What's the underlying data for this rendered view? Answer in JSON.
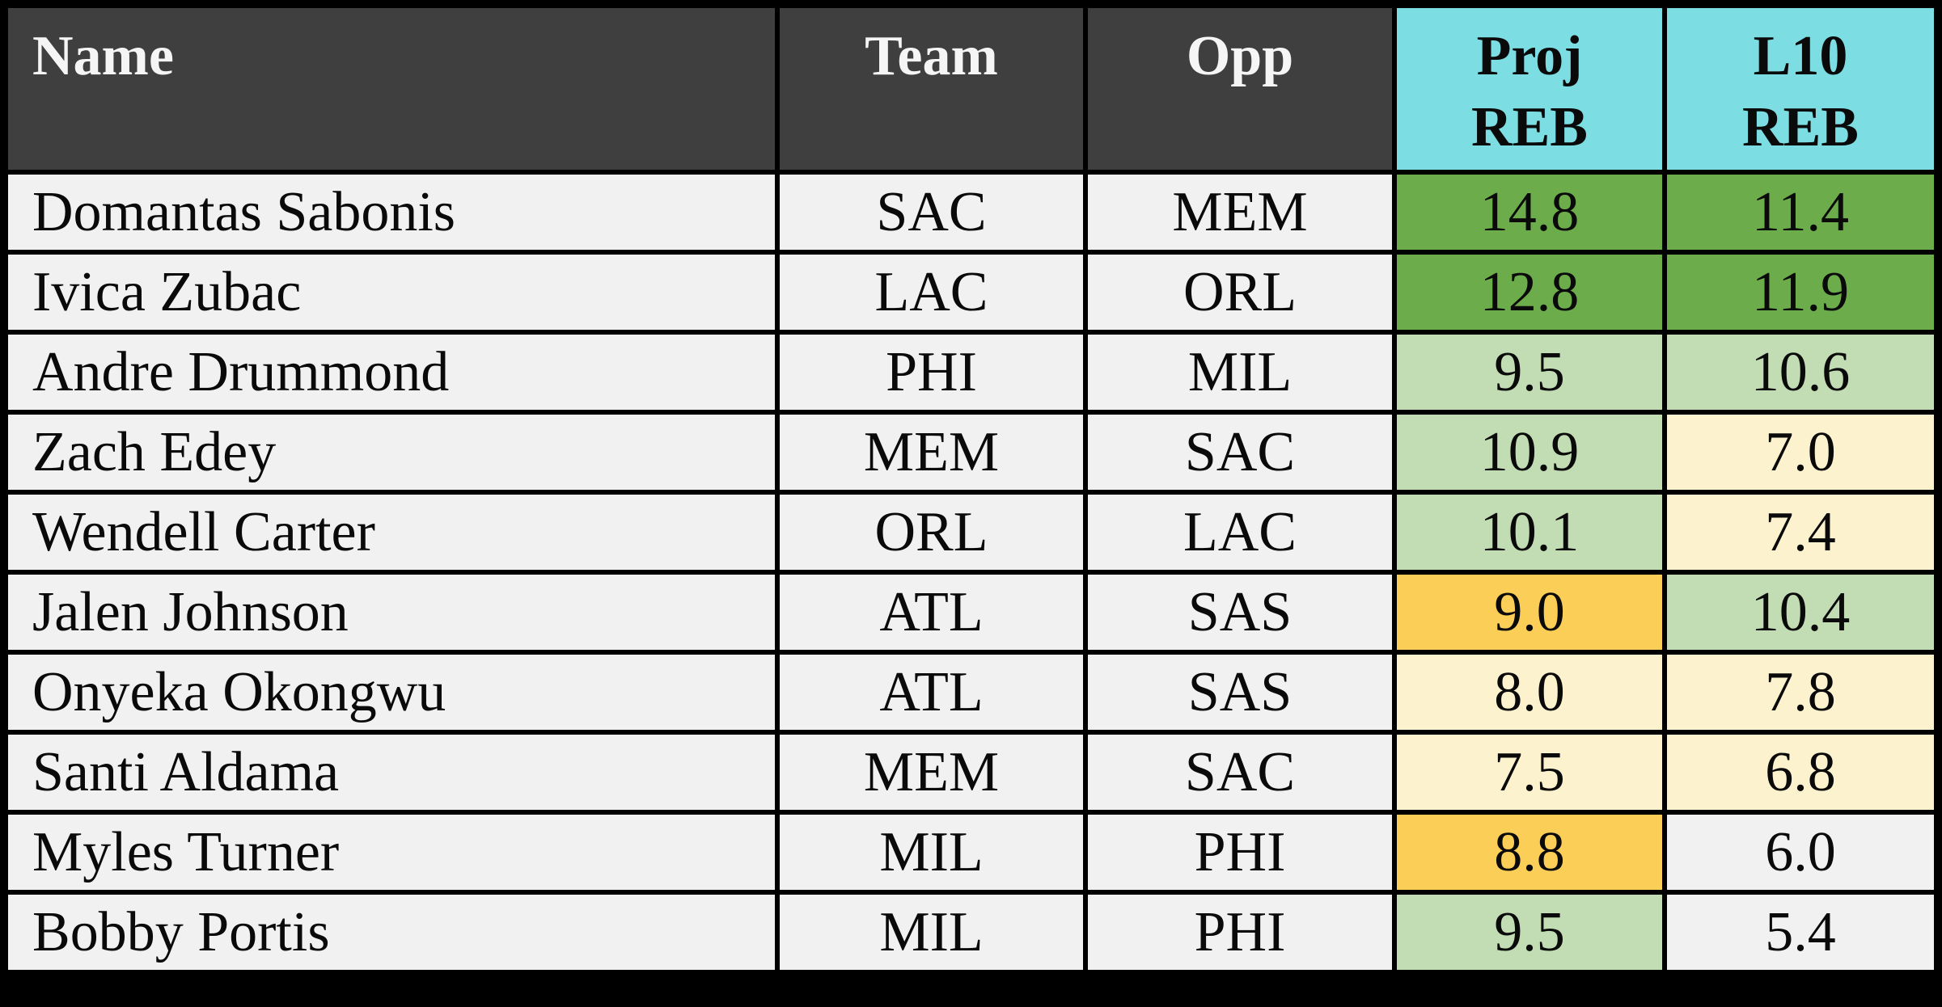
{
  "title": "NBA rebound projections table",
  "colors": {
    "frame": "#000000",
    "header_bg": "#3F3F3F",
    "header_text": "#F5F5F5",
    "accent_cyan": "#7CDDE2",
    "row_bg": "#F1F1F1",
    "cell_text": "#0A0A0A",
    "scale": {
      "green": "#6CAC4B",
      "green_light": "#C2DDB3",
      "yellow_light": "#FCF2CE",
      "gold": "#FBCF57",
      "none": "#F1F1F1"
    }
  },
  "table": {
    "header": {
      "name": "Name",
      "team": "Team",
      "opp": "Opp",
      "proj_line1": "Proj",
      "proj_line2": "REB",
      "l10_line1": "L10",
      "l10_line2": "REB"
    },
    "rows": [
      {
        "name": "Domantas Sabonis",
        "team": "SAC",
        "opp": "MEM",
        "proj": "14.8",
        "l10": "11.4",
        "proj_color": "green",
        "l10_color": "green"
      },
      {
        "name": "Ivica Zubac",
        "team": "LAC",
        "opp": "ORL",
        "proj": "12.8",
        "l10": "11.9",
        "proj_color": "green",
        "l10_color": "green"
      },
      {
        "name": "Andre Drummond",
        "team": "PHI",
        "opp": "MIL",
        "proj": "9.5",
        "l10": "10.6",
        "proj_color": "green_light",
        "l10_color": "green_light"
      },
      {
        "name": "Zach Edey",
        "team": "MEM",
        "opp": "SAC",
        "proj": "10.9",
        "l10": "7.0",
        "proj_color": "green_light",
        "l10_color": "yellow_light"
      },
      {
        "name": "Wendell Carter",
        "team": "ORL",
        "opp": "LAC",
        "proj": "10.1",
        "l10": "7.4",
        "proj_color": "green_light",
        "l10_color": "yellow_light"
      },
      {
        "name": "Jalen Johnson",
        "team": "ATL",
        "opp": "SAS",
        "proj": "9.0",
        "l10": "10.4",
        "proj_color": "gold",
        "l10_color": "green_light"
      },
      {
        "name": "Onyeka Okongwu",
        "team": "ATL",
        "opp": "SAS",
        "proj": "8.0",
        "l10": "7.8",
        "proj_color": "yellow_light",
        "l10_color": "yellow_light"
      },
      {
        "name": "Santi Aldama",
        "team": "MEM",
        "opp": "SAC",
        "proj": "7.5",
        "l10": "6.8",
        "proj_color": "yellow_light",
        "l10_color": "yellow_light"
      },
      {
        "name": "Myles Turner",
        "team": "MIL",
        "opp": "PHI",
        "proj": "8.8",
        "l10": "6.0",
        "proj_color": "gold",
        "l10_color": "none"
      },
      {
        "name": "Bobby Portis",
        "team": "MIL",
        "opp": "PHI",
        "proj": "9.5",
        "l10": "5.4",
        "proj_color": "green_light",
        "l10_color": "none"
      }
    ]
  },
  "chart_data": {
    "type": "table",
    "title": "Projected rebounds vs last-10-game rebounds",
    "columns": [
      "Name",
      "Team",
      "Opp",
      "Proj REB",
      "L10 REB"
    ],
    "rows": [
      [
        "Domantas Sabonis",
        "SAC",
        "MEM",
        14.8,
        11.4
      ],
      [
        "Ivica Zubac",
        "LAC",
        "ORL",
        12.8,
        11.9
      ],
      [
        "Andre Drummond",
        "PHI",
        "MIL",
        9.5,
        10.6
      ],
      [
        "Zach Edey",
        "MEM",
        "SAC",
        10.9,
        7.0
      ],
      [
        "Wendell Carter",
        "ORL",
        "LAC",
        10.1,
        7.4
      ],
      [
        "Jalen Johnson",
        "ATL",
        "SAS",
        9.0,
        10.4
      ],
      [
        "Onyeka Okongwu",
        "ATL",
        "SAS",
        8.0,
        7.8
      ],
      [
        "Santi Aldama",
        "MEM",
        "SAC",
        7.5,
        6.8
      ],
      [
        "Myles Turner",
        "MIL",
        "PHI",
        8.8,
        6.0
      ],
      [
        "Bobby Portis",
        "MIL",
        "PHI",
        9.5,
        5.4
      ]
    ],
    "cell_highlight_colors": {
      "Proj REB": [
        "green",
        "green",
        "green_light",
        "green_light",
        "green_light",
        "gold",
        "yellow_light",
        "yellow_light",
        "gold",
        "green_light"
      ],
      "L10 REB": [
        "green",
        "green",
        "green_light",
        "yellow_light",
        "yellow_light",
        "green_light",
        "yellow_light",
        "yellow_light",
        "none",
        "none"
      ]
    },
    "layout_hints": {
      "header_row_bg": "#3F3F3F",
      "stat_header_bg": "#7CDDE2",
      "gridlines": "thick black",
      "font": "serif"
    }
  }
}
